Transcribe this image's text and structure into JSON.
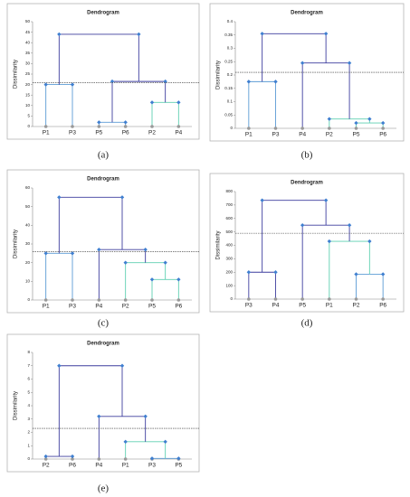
{
  "chart_data": [
    {
      "type": "dendrogram",
      "title": "Dendrogram",
      "ylabel": "Dissimilarity",
      "caption": "(a)",
      "ylim": [
        0,
        50
      ],
      "yticks": [
        0,
        5,
        10,
        15,
        20,
        25,
        30,
        35,
        40,
        45,
        50
      ],
      "cut": 21,
      "tree": {
        "height": 44,
        "color": "#3d3d9e",
        "children": [
          {
            "height": 20,
            "color": "#5b9bd5",
            "children": [
              "P1",
              "P3"
            ]
          },
          {
            "height": 21.5,
            "color": "#3d3d9e",
            "children": [
              {
                "height": 2,
                "color": "#5b9bd5",
                "children": [
                  "P5",
                  "P6"
                ]
              },
              {
                "height": 11.5,
                "color": "#5ecfb1",
                "children": [
                  "P2",
                  "P4"
                ]
              }
            ]
          }
        ]
      }
    },
    {
      "type": "dendrogram",
      "title": "Dendrogram",
      "ylabel": "Dissimilarity",
      "caption": "(b)",
      "ylim": [
        0,
        0.4
      ],
      "yticks": [
        0,
        0.05,
        0.1,
        0.15,
        0.2,
        0.25,
        0.3,
        0.35,
        0.4
      ],
      "cut": 0.21,
      "tree": {
        "height": 0.355,
        "color": "#3d3d9e",
        "children": [
          {
            "height": 0.175,
            "color": "#5b9bd5",
            "children": [
              "P1",
              "P3"
            ]
          },
          {
            "height": 0.245,
            "color": "#3d3d9e",
            "children": [
              "P4",
              {
                "height": 0.035,
                "color": "#5ecfb1",
                "children": [
                  "P2",
                  {
                    "height": 0.02,
                    "color": "#5ecfb1",
                    "children": [
                      "P5",
                      "P6"
                    ]
                  }
                ]
              }
            ]
          }
        ]
      }
    },
    {
      "type": "dendrogram",
      "title": "Dendrogram",
      "ylabel": "Dissimilarity",
      "caption": "(c)",
      "ylim": [
        0,
        60
      ],
      "yticks": [
        0,
        10,
        20,
        30,
        40,
        50,
        60
      ],
      "cut": 26,
      "tree": {
        "height": 55,
        "color": "#3d3d9e",
        "children": [
          {
            "height": 25,
            "color": "#5b9bd5",
            "children": [
              "P1",
              "P3"
            ]
          },
          {
            "height": 27,
            "color": "#3d3d9e",
            "children": [
              "P4",
              {
                "height": 20,
                "color": "#5ecfb1",
                "children": [
                  "P2",
                  {
                    "height": 11,
                    "color": "#5ecfb1",
                    "children": [
                      "P5",
                      "P6"
                    ]
                  }
                ]
              }
            ]
          }
        ]
      }
    },
    {
      "type": "dendrogram",
      "title": "Dendrogram",
      "ylabel": "Dissimilarity",
      "caption": "(d)",
      "ylim": [
        0,
        800
      ],
      "yticks": [
        0,
        100,
        200,
        300,
        400,
        500,
        600,
        700,
        800
      ],
      "cut": 490,
      "tree": {
        "height": 735,
        "color": "#3d3d9e",
        "children": [
          {
            "height": 200,
            "color": "#3d3d9e",
            "children": [
              "P3",
              "P4"
            ]
          },
          {
            "height": 550,
            "color": "#3d3d9e",
            "children": [
              "P5",
              {
                "height": 430,
                "color": "#5ecfb1",
                "children": [
                  "P1",
                  {
                    "height": 185,
                    "color": "#5b9bd5",
                    "children": [
                      "P2",
                      "P6"
                    ]
                  }
                ]
              }
            ]
          }
        ]
      }
    },
    {
      "type": "dendrogram",
      "title": "Dendrogram",
      "ylabel": "Dissimilarity",
      "caption": "(e)",
      "ylim": [
        0,
        8
      ],
      "yticks": [
        0,
        1,
        2,
        3,
        4,
        5,
        6,
        7,
        8
      ],
      "cut": 2.3,
      "tree": {
        "height": 7,
        "color": "#3d3d9e",
        "children": [
          {
            "height": 0.2,
            "color": "#3d3d9e",
            "children": [
              "P2",
              "P6"
            ]
          },
          {
            "height": 3.2,
            "color": "#3d3d9e",
            "children": [
              "P4",
              {
                "height": 1.3,
                "color": "#5ecfb1",
                "children": [
                  "P1",
                  {
                    "height": 0.05,
                    "color": "#5b9bd5",
                    "children": [
                      "P3",
                      "P5"
                    ]
                  }
                ]
              }
            ]
          }
        ]
      }
    }
  ]
}
